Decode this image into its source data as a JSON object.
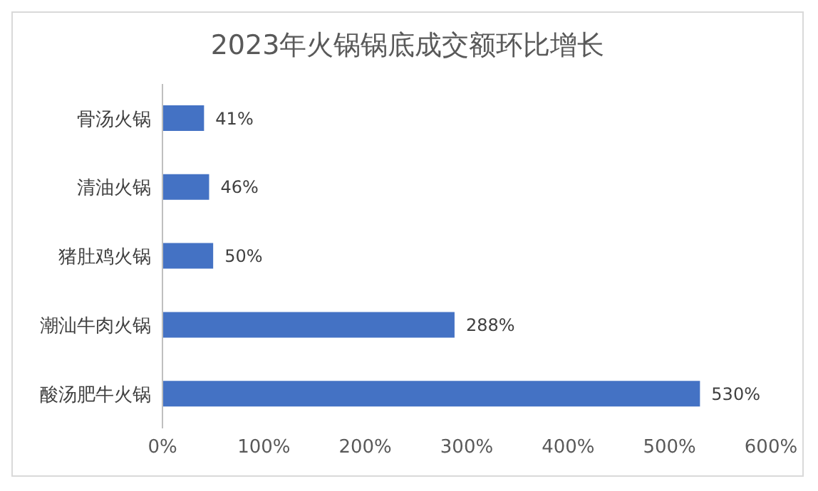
{
  "chart_data": {
    "type": "bar",
    "orientation": "horizontal",
    "title": "2023年火锅锅底成交额环比增长",
    "categories": [
      "骨汤火锅",
      "清油火锅",
      "猪肚鸡火锅",
      "潮汕牛肉火锅",
      "酸汤肥牛火锅"
    ],
    "values": [
      41,
      46,
      50,
      288,
      530
    ],
    "value_labels": [
      "41%",
      "46%",
      "50%",
      "288%",
      "530%"
    ],
    "color": "#4472c4",
    "xlim": [
      0,
      600
    ],
    "xticks": [
      {
        "value": 0,
        "label": "0%"
      },
      {
        "value": 100,
        "label": "100%"
      },
      {
        "value": 200,
        "label": "200%"
      },
      {
        "value": 300,
        "label": "300%"
      },
      {
        "value": 400,
        "label": "400%"
      },
      {
        "value": 500,
        "label": "500%"
      },
      {
        "value": 600,
        "label": "600%"
      }
    ],
    "grid": false,
    "legend": false
  }
}
